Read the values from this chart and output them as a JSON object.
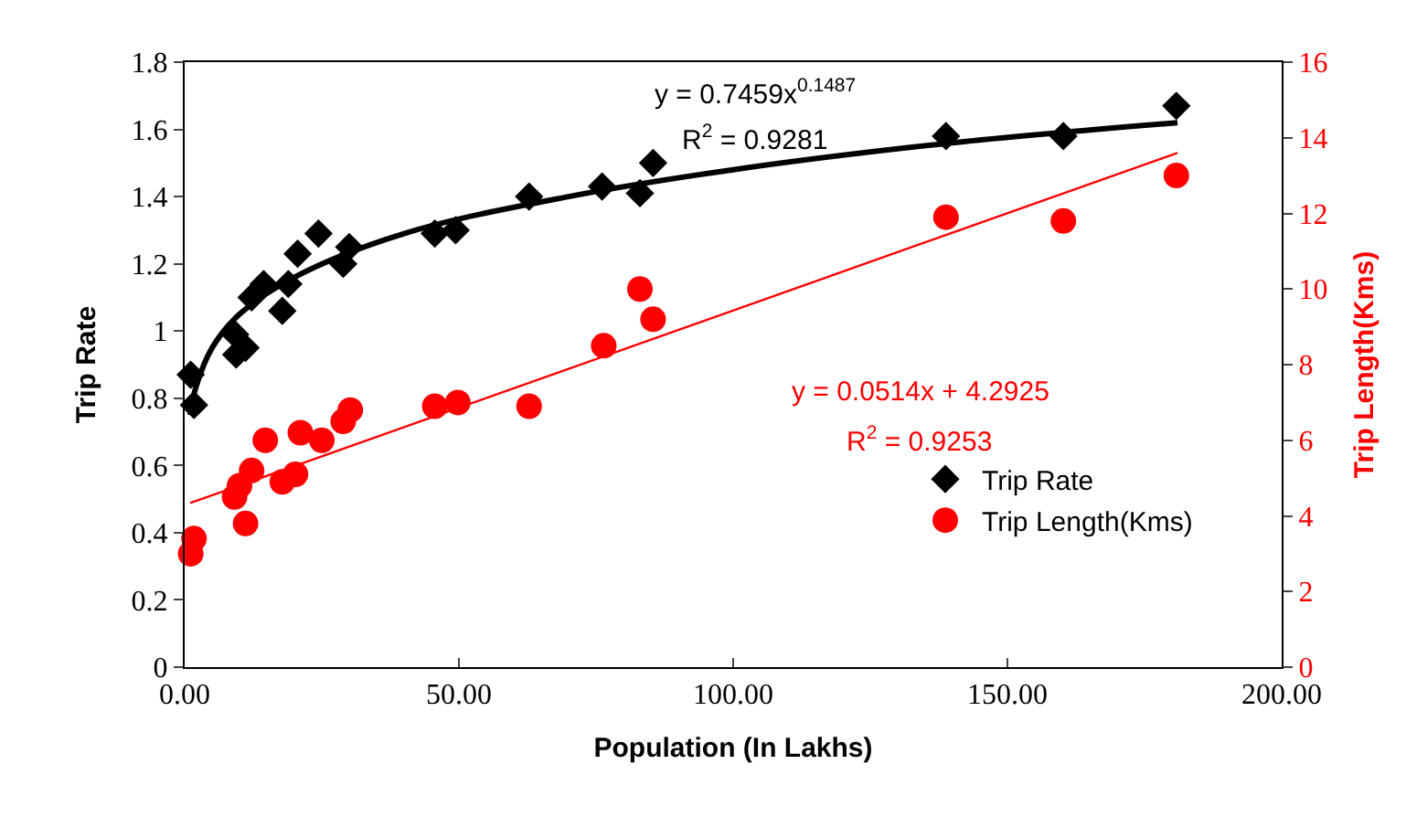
{
  "chart_data": {
    "type": "scatter",
    "xlabel": "Population (In Lakhs)",
    "ylabel": "Trip Rate",
    "y2label": "Trip Length(Kms)",
    "xlim": [
      0,
      200
    ],
    "xticks": [
      {
        "value": 0,
        "label": "0.00"
      },
      {
        "value": 50,
        "label": "50.00"
      },
      {
        "value": 100,
        "label": "100.00"
      },
      {
        "value": 150,
        "label": "150.00"
      },
      {
        "value": 200,
        "label": "200.00"
      }
    ],
    "ylim": [
      0,
      1.8
    ],
    "yticks": [
      0,
      0.2,
      0.4,
      0.6,
      0.8,
      1,
      1.2,
      1.4,
      1.6,
      1.8
    ],
    "y2lim": [
      0,
      16
    ],
    "y2ticks": [
      0,
      2,
      4,
      6,
      8,
      10,
      12,
      14,
      16
    ],
    "legend": "bottom right",
    "annotations": [
      "y = 0.7459x$^{0.1487}$",
      "R$^{2}$ = 0.9281",
      "y = 0.0514x + 4.2925",
      "R$^{2}$ = 0.9253"
    ],
    "series": [
      {
        "name": "Trip Rate",
        "marker": "diamond",
        "color": "#000000",
        "x": [
          1.1,
          1.7,
          9.2,
          9.4,
          11.1,
          12.2,
          14.4,
          17.8,
          18.9,
          20.6,
          24.4,
          28.9,
          30,
          45.6,
          49.4,
          62.8,
          76.1,
          83,
          85.4,
          138.8,
          160.2,
          180.8
        ],
        "values": [
          0.87,
          0.78,
          0.99,
          0.93,
          0.95,
          1.1,
          1.14,
          1.06,
          1.14,
          1.23,
          1.29,
          1.2,
          1.25,
          1.29,
          1.3,
          1.4,
          1.43,
          1.41,
          1.5,
          1.58,
          1.58,
          1.67
        ]
      },
      {
        "name": "Trip Length(Kms)",
        "marker": "circle",
        "axis": "y2",
        "color": "#ff0000",
        "x": [
          1.1,
          1.7,
          9.1,
          10,
          12.2,
          11.1,
          14.7,
          17.8,
          20.2,
          21.1,
          25,
          28.9,
          30.2,
          45.6,
          49.8,
          62.8,
          76.4,
          83,
          85.4,
          138.8,
          160.2,
          180.8
        ],
        "values": [
          3.0,
          3.4,
          4.5,
          4.8,
          5.2,
          3.8,
          6.0,
          4.9,
          5.1,
          6.2,
          6.0,
          6.5,
          6.8,
          6.9,
          7.0,
          6.9,
          8.5,
          10.0,
          9.2,
          11.9,
          11.8,
          13.0
        ]
      },
      {
        "type": "line",
        "color": "#000000",
        "line_style": "solid",
        "x": [
          1,
          2,
          5,
          10,
          20,
          40,
          70,
          100,
          140,
          181
        ],
        "values": [
          0.75,
          0.83,
          0.95,
          1.05,
          1.16,
          1.29,
          1.4,
          1.48,
          1.56,
          1.62
        ]
      },
      {
        "type": "line",
        "axis": "y2",
        "color": "#ff0000",
        "line_style": "solid",
        "x": [
          1,
          181
        ],
        "values": [
          4.34,
          13.6
        ]
      }
    ]
  }
}
